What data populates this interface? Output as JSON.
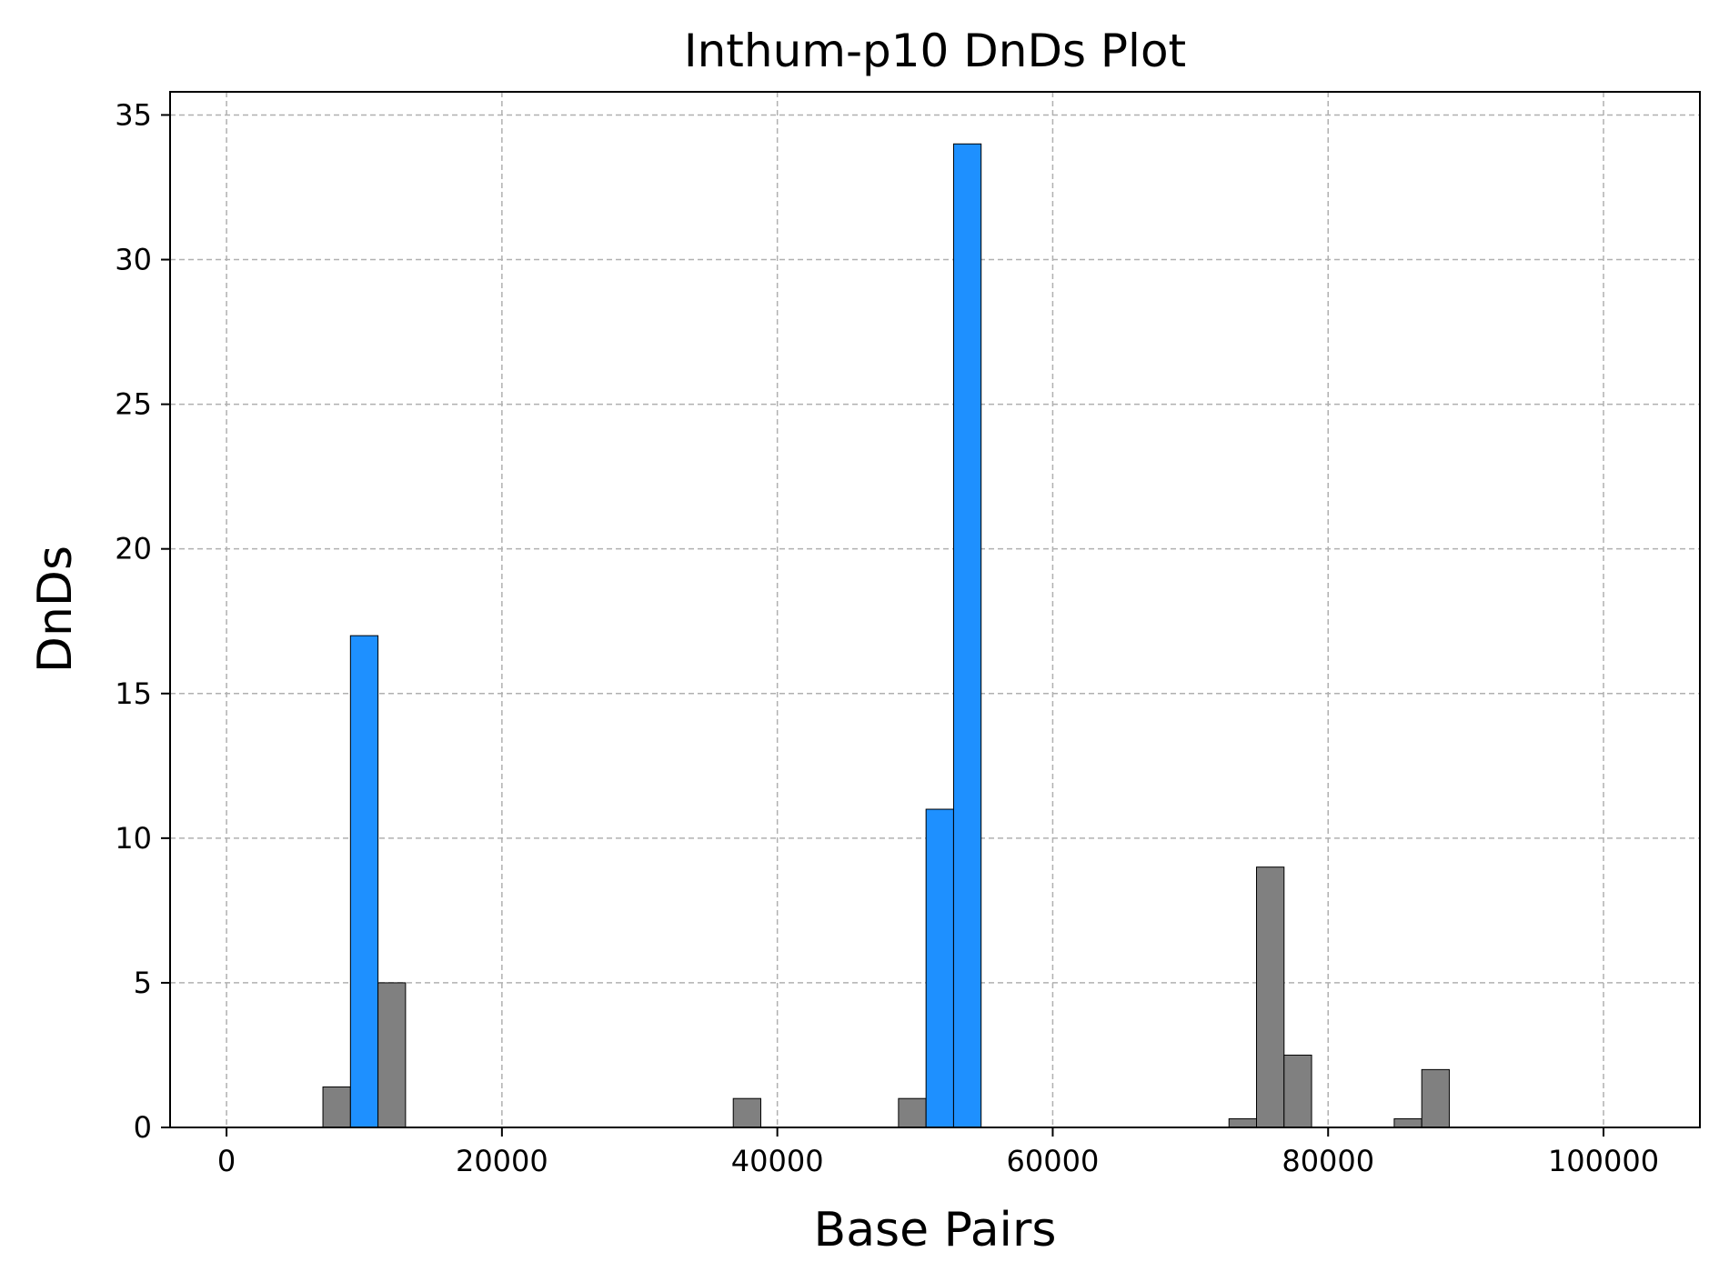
{
  "chart_data": {
    "type": "bar",
    "title": "Inthum-p10 DnDs Plot",
    "xlabel": "Base Pairs",
    "ylabel": "DnDs",
    "xlim": [
      -4100,
      107000
    ],
    "ylim": [
      0,
      35.8
    ],
    "xticks": [
      0,
      20000,
      40000,
      60000,
      80000,
      100000
    ],
    "xtick_labels": [
      "0",
      "20000",
      "40000",
      "60000",
      "80000",
      "100000"
    ],
    "yticks": [
      0,
      5,
      10,
      15,
      20,
      25,
      30,
      35
    ],
    "ytick_labels": [
      "0",
      "5",
      "10",
      "15",
      "20",
      "25",
      "30",
      "35"
    ],
    "grid": true,
    "bin_width": 2000,
    "colors": {
      "highlight": "#1e90ff",
      "default": "#808080"
    },
    "bars": [
      {
        "x_start": 7000,
        "value": 1.4,
        "group": "default"
      },
      {
        "x_start": 9000,
        "value": 17,
        "group": "highlight"
      },
      {
        "x_start": 11000,
        "value": 5,
        "group": "default"
      },
      {
        "x_start": 36800,
        "value": 1,
        "group": "default"
      },
      {
        "x_start": 48800,
        "value": 1,
        "group": "default"
      },
      {
        "x_start": 50800,
        "value": 11,
        "group": "highlight"
      },
      {
        "x_start": 52800,
        "value": 34,
        "group": "highlight"
      },
      {
        "x_start": 72800,
        "value": 0.3,
        "group": "default"
      },
      {
        "x_start": 74800,
        "value": 9,
        "group": "default"
      },
      {
        "x_start": 76800,
        "value": 2.5,
        "group": "default"
      },
      {
        "x_start": 84800,
        "value": 0.3,
        "group": "default"
      },
      {
        "x_start": 86800,
        "value": 2,
        "group": "default"
      }
    ]
  }
}
